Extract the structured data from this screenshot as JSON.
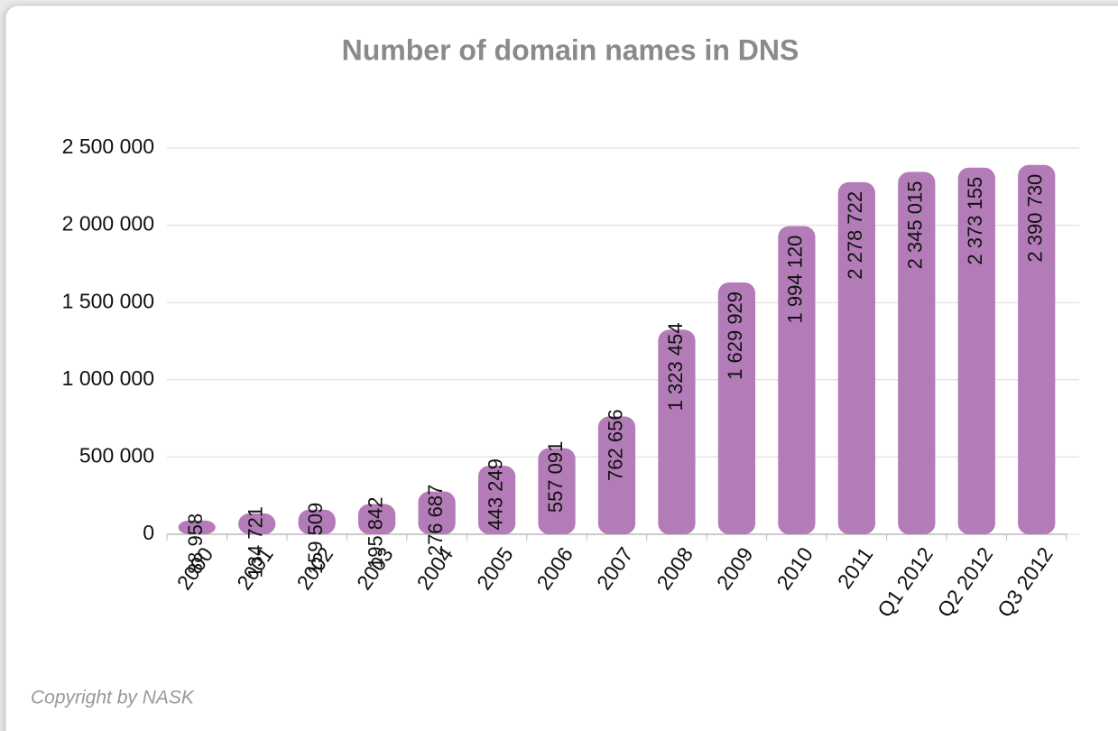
{
  "chart_data": {
    "type": "bar",
    "title": "Number of domain names in DNS",
    "categories": [
      "2000",
      "2001",
      "2002",
      "2003",
      "2004",
      "2005",
      "2006",
      "2007",
      "2008",
      "2009",
      "2010",
      "2011",
      "Q1 2012",
      "Q2 2012",
      "Q3 2012"
    ],
    "values": [
      88958,
      134721,
      159509,
      195842,
      276687,
      443249,
      557091,
      762656,
      1323454,
      1629929,
      1994120,
      2278722,
      2345015,
      2373155,
      2390730
    ],
    "value_labels": [
      "88 958",
      "134 721",
      "159 509",
      "195 842",
      "276 687",
      "443 249",
      "557 091",
      "762 656",
      "1 323 454",
      "1 629 929",
      "1 994 120",
      "2 278 722",
      "2 345 015",
      "2 373 155",
      "2 390 730"
    ],
    "color": "#b37bb7",
    "ylim": [
      0,
      2500000
    ],
    "yticks": [
      0,
      {
        "value": 500000,
        "label": "500 000"
      },
      {
        "value": 1000000,
        "label": "1 000 000"
      },
      {
        "value": 1500000,
        "label": "1 500 000"
      },
      {
        "value": 2000000,
        "label": "2 000 000"
      },
      {
        "value": 2500000,
        "label": "2 500 000"
      }
    ],
    "grid": true,
    "source": "Copyright by NASK"
  }
}
